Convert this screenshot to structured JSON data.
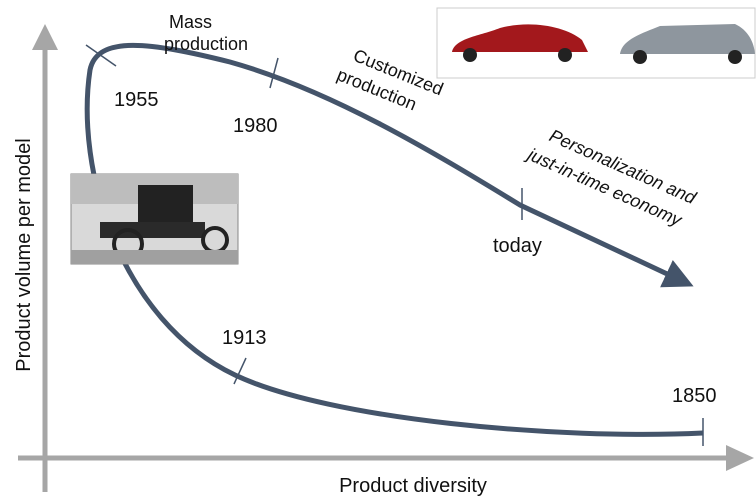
{
  "axes": {
    "x_label": "Product diversity",
    "y_label": "Product volume per model"
  },
  "milestones": [
    {
      "label": "1850"
    },
    {
      "label": "1913"
    },
    {
      "label": "1955"
    },
    {
      "label": "1980"
    },
    {
      "label": "today"
    }
  ],
  "phases": [
    {
      "lines": [
        "Mass",
        "production"
      ]
    },
    {
      "lines": [
        "Customized",
        "production"
      ]
    },
    {
      "lines": [
        "Personalization and",
        "just-in-time economy"
      ]
    }
  ]
}
